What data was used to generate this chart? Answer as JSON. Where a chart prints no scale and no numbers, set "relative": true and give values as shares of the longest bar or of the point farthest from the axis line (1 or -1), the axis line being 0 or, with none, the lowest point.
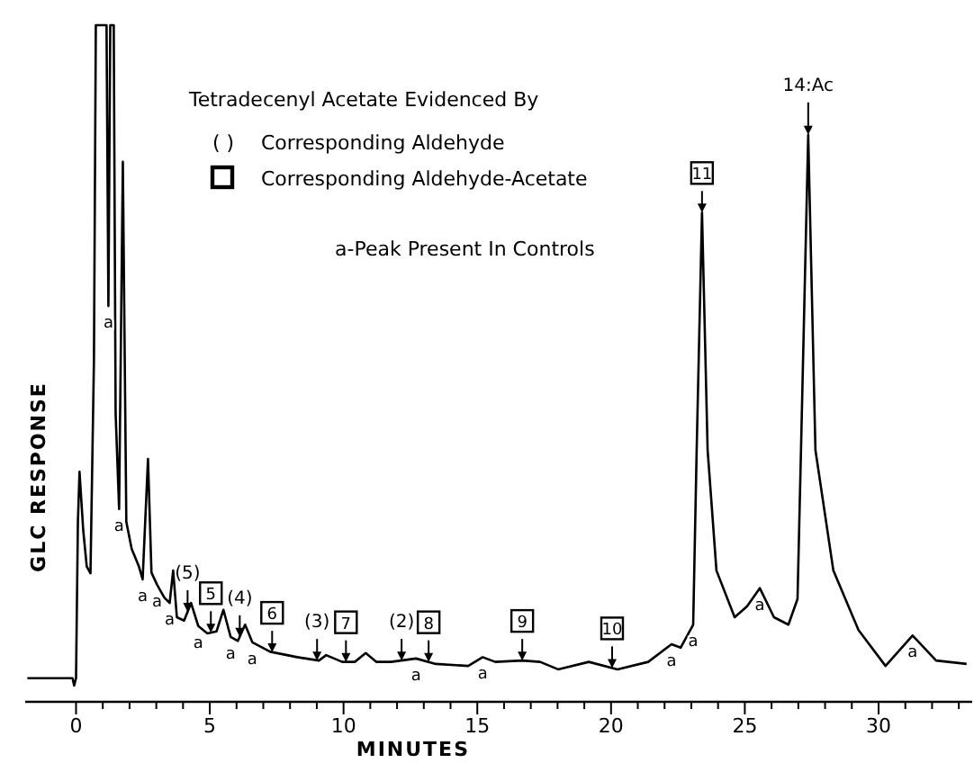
{
  "chart_data": {
    "type": "line",
    "relative": true,
    "xlabel": "MINUTES",
    "ylabel": "GLC RESPONSE",
    "xlim": [
      -1.9,
      33.5
    ],
    "xticks": [
      0,
      {
        "value": 1,
        "label": null
      },
      {
        "value": 2,
        "label": null
      },
      {
        "value": 3,
        "label": null
      },
      {
        "value": 4,
        "label": null
      },
      5,
      {
        "value": 6,
        "label": null
      },
      {
        "value": 7,
        "label": null
      },
      {
        "value": 8,
        "label": null
      },
      {
        "value": 9,
        "label": null
      },
      10,
      {
        "value": 11,
        "label": null
      },
      {
        "value": 12,
        "label": null
      },
      {
        "value": 13,
        "label": null
      },
      {
        "value": 14,
        "label": null
      },
      15,
      {
        "value": 16,
        "label": null
      },
      {
        "value": 17,
        "label": null
      },
      {
        "value": 18,
        "label": null
      },
      {
        "value": 19,
        "label": null
      },
      20,
      {
        "value": 21,
        "label": null
      },
      {
        "value": 22,
        "label": null
      },
      {
        "value": 23,
        "label": null
      },
      {
        "value": 24,
        "label": null
      },
      25,
      {
        "value": 26,
        "label": null
      },
      {
        "value": 27,
        "label": null
      },
      {
        "value": 28,
        "label": null
      },
      {
        "value": 29,
        "label": null
      },
      30,
      {
        "value": 31,
        "label": null
      },
      {
        "value": 32,
        "label": null
      },
      {
        "value": 33,
        "label": null
      }
    ],
    "series": [
      {
        "color": "#000000",
        "x": [
          -1.82,
          -0.13,
          -0.07,
          0,
          0.07,
          0.13,
          0.27,
          0.4,
          0.54,
          0.67,
          0.74,
          1.14,
          1.21,
          1.28,
          1.41,
          1.48,
          1.61,
          1.75,
          1.88,
          2.08,
          2.35,
          2.49,
          2.69,
          2.82,
          3.03,
          3.3,
          3.5,
          3.63,
          3.77,
          4.04,
          4.3,
          4.57,
          4.91,
          5.25,
          5.51,
          5.78,
          6.05,
          6.32,
          6.59,
          7.26,
          8.27,
          9.08,
          9.35,
          9.95,
          10.42,
          10.83,
          11.23,
          11.77,
          12.71,
          13.45,
          14.66,
          15.2,
          15.67,
          16.68,
          17.35,
          18.02,
          19.17,
          20.24,
          21.39,
          22.26,
          22.6,
          23.07,
          23.2,
          23.4,
          23.61,
          23.94,
          24.62,
          25.08,
          25.56,
          26.09,
          26.63,
          26.97,
          27.1,
          27.37,
          27.64,
          28.31,
          29.25,
          30.26,
          31.27,
          32.15,
          33.29
        ],
        "values": [
          0.035,
          0.035,
          0.024,
          0.035,
          0.266,
          0.34,
          0.253,
          0.2,
          0.19,
          0.505,
          1,
          1,
          0.585,
          1,
          1,
          0.426,
          0.285,
          0.798,
          0.266,
          0.226,
          0.2,
          0.181,
          0.359,
          0.191,
          0.173,
          0.154,
          0.146,
          0.194,
          0.125,
          0.12,
          0.146,
          0.112,
          0.101,
          0.104,
          0.136,
          0.096,
          0.09,
          0.114,
          0.088,
          0.074,
          0.066,
          0.061,
          0.069,
          0.059,
          0.059,
          0.072,
          0.059,
          0.059,
          0.064,
          0.056,
          0.053,
          0.066,
          0.059,
          0.061,
          0.059,
          0.048,
          0.059,
          0.048,
          0.059,
          0.085,
          0.08,
          0.114,
          0.372,
          0.723,
          0.372,
          0.194,
          0.125,
          0.141,
          0.168,
          0.125,
          0.114,
          0.152,
          0.372,
          0.838,
          0.372,
          0.194,
          0.106,
          0.053,
          0.098,
          0.061,
          0.056
        ]
      }
    ],
    "annotations": [
      "Tetradecenyl Acetate Evidenced By",
      "( )",
      "Corresponding Aldehyde",
      "Corresponding Aldehyde-Acetate",
      "a-Peak Present In Controls",
      {
        "text": "5",
        "x": 5.04,
        "y": 0.102
      },
      {
        "text": "6",
        "x": 7.33,
        "y": 0.073
      },
      {
        "text": "7",
        "x": 10.09,
        "y": 0.059
      },
      {
        "text": "8",
        "x": 13.18,
        "y": 0.059
      },
      {
        "text": "9",
        "x": 16.68,
        "y": 0.061
      },
      {
        "text": "10",
        "x": 20.04,
        "y": 0.05
      },
      {
        "text": "11",
        "x": 23.4,
        "y": 0.723
      },
      {
        "text": "(5)",
        "x": 4.17,
        "y": 0.133
      },
      {
        "text": "(4)",
        "x": 6.12,
        "y": 0.096
      },
      {
        "text": "(3)",
        "x": 9.01,
        "y": 0.061
      },
      {
        "text": "(2)",
        "x": 12.17,
        "y": 0.061
      },
      {
        "text": "14:Ac",
        "x": 27.37,
        "y": 0.838
      },
      {
        "text": "a",
        "x": 1.21,
        "y": 0.585
      },
      {
        "text": "a",
        "x": 1.61,
        "y": 0.285
      },
      {
        "text": "a",
        "x": 2.49,
        "y": 0.181
      },
      {
        "text": "a",
        "x": 3.03,
        "y": 0.173
      },
      {
        "text": "a",
        "x": 3.5,
        "y": 0.146
      },
      {
        "text": "a",
        "x": 4.57,
        "y": 0.112
      },
      {
        "text": "a",
        "x": 5.78,
        "y": 0.096
      },
      {
        "text": "a",
        "x": 6.59,
        "y": 0.088
      },
      {
        "text": "a",
        "x": 12.71,
        "y": 0.064
      },
      {
        "text": "a",
        "x": 15.2,
        "y": 0.066
      },
      {
        "text": "a",
        "x": 22.26,
        "y": 0.085
      },
      {
        "text": "a",
        "x": 23.07,
        "y": 0.114
      },
      {
        "text": "a",
        "x": 25.56,
        "y": 0.168
      },
      {
        "text": "a",
        "x": 31.27,
        "y": 0.098
      }
    ]
  }
}
